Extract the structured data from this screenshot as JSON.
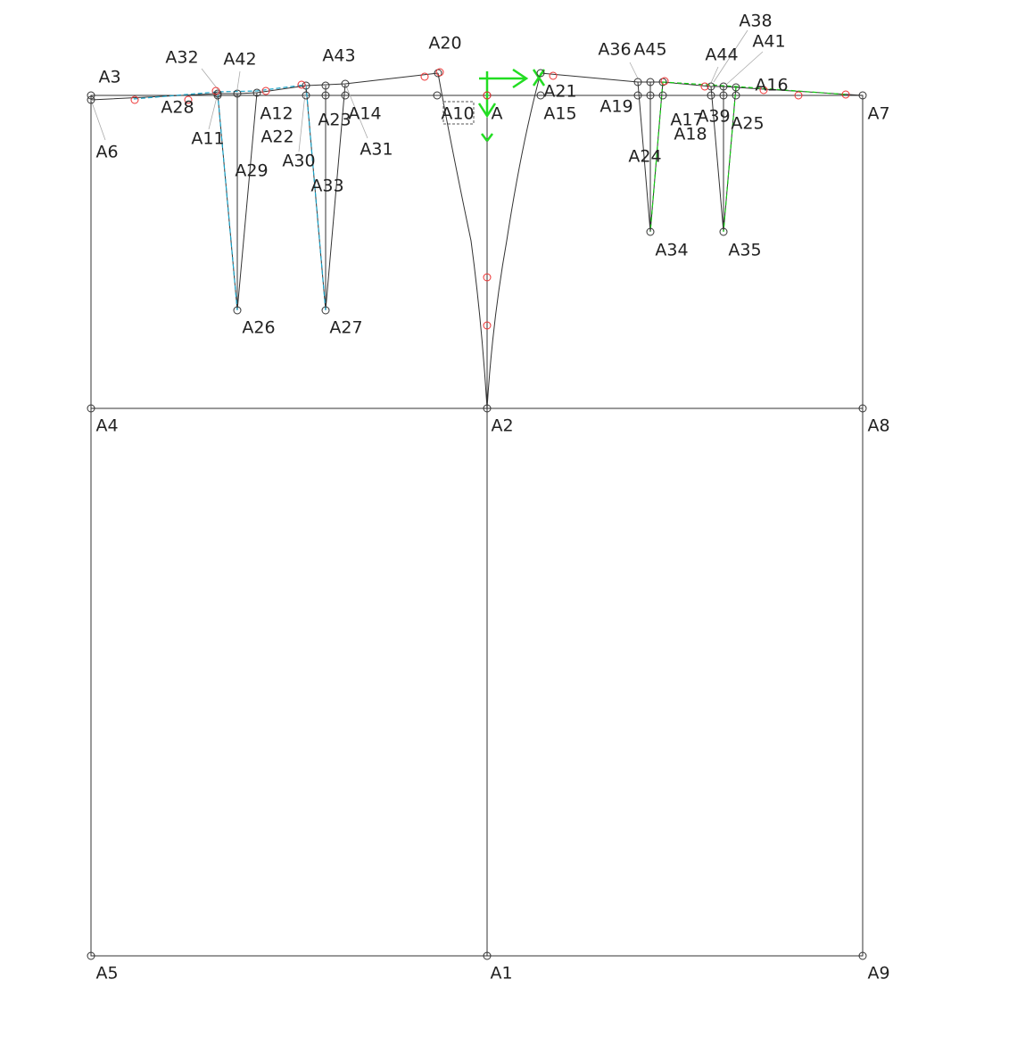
{
  "points": [
    {
      "label": "A"
    },
    {
      "label": "A1"
    },
    {
      "label": "A2"
    },
    {
      "label": "A3"
    },
    {
      "label": "A4"
    },
    {
      "label": "A5"
    },
    {
      "label": "A6"
    },
    {
      "label": "A7"
    },
    {
      "label": "A8"
    },
    {
      "label": "A9"
    },
    {
      "label": "A10"
    },
    {
      "label": "A11"
    },
    {
      "label": "A12"
    },
    {
      "label": "A14"
    },
    {
      "label": "A15"
    },
    {
      "label": "A16"
    },
    {
      "label": "A17"
    },
    {
      "label": "A18"
    },
    {
      "label": "A19"
    },
    {
      "label": "A20"
    },
    {
      "label": "A21"
    },
    {
      "label": "A22"
    },
    {
      "label": "A23"
    },
    {
      "label": "A24"
    },
    {
      "label": "A25"
    },
    {
      "label": "A26"
    },
    {
      "label": "A27"
    },
    {
      "label": "A28"
    },
    {
      "label": "A29"
    },
    {
      "label": "A30"
    },
    {
      "label": "A31"
    },
    {
      "label": "A32"
    },
    {
      "label": "A33"
    },
    {
      "label": "A34"
    },
    {
      "label": "A35"
    },
    {
      "label": "A36"
    },
    {
      "label": "A38"
    },
    {
      "label": "A39"
    },
    {
      "label": "A41"
    },
    {
      "label": "A42"
    },
    {
      "label": "A43"
    },
    {
      "label": "A44"
    },
    {
      "label": "A45"
    }
  ]
}
